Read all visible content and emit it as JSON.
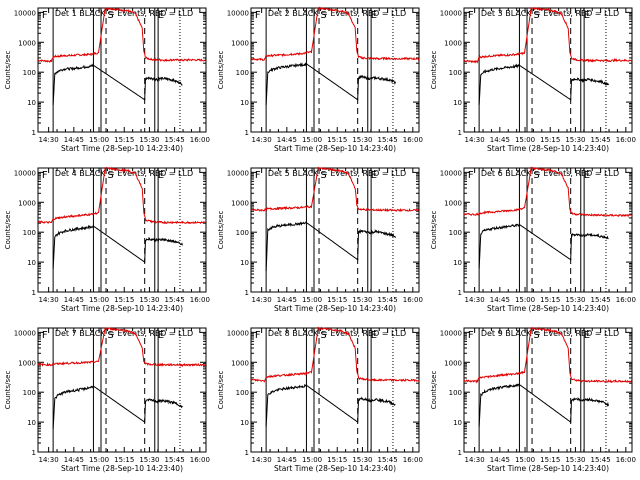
{
  "chart_data": {
    "type": "line",
    "x_unit": "minutes after 14:23:40",
    "y_scale": "log",
    "ylim": [
      1,
      14000
    ],
    "xlim": [
      0,
      100
    ],
    "ylabel": "Counts/sec",
    "xlabel": "Start Time (28-Sep-10 14:23:40)",
    "x_ticks": [
      {
        "label": "14:30",
        "value": 6.33
      },
      {
        "label": "14:45",
        "value": 21.33
      },
      {
        "label": "15:00",
        "value": 36.33
      },
      {
        "label": "15:15",
        "value": 51.33
      },
      {
        "label": "15:30",
        "value": 66.33
      },
      {
        "label": "15:45",
        "value": 81.33
      },
      {
        "label": "16:00",
        "value": 96.33
      }
    ],
    "y_ticks": [
      {
        "label": "1",
        "value": 1
      },
      {
        "label": "10",
        "value": 10
      },
      {
        "label": "100",
        "value": 100
      },
      {
        "label": "1000",
        "value": 1000
      },
      {
        "label": "10000",
        "value": 10000
      }
    ],
    "markers": [
      {
        "label": "F",
        "value": 2.3
      },
      {
        "label": "S",
        "value": 41.3
      },
      {
        "label": "E",
        "value": 71.3
      }
    ],
    "solid_lines": [
      9,
      33,
      37.5,
      69.5,
      71.5
    ],
    "dashed_lines": [
      40.5,
      63.5
    ],
    "dotted_lines": [
      84.5
    ],
    "panels": [
      {
        "title": "Det 1 BLACK = Events, RED = LLD",
        "bg_red": 250,
        "bg_black": 100,
        "red_series": {
          "name": "RED = LLD",
          "x": [
            0,
            8,
            9,
            12,
            16,
            20,
            24,
            28,
            32,
            33,
            36,
            40,
            44,
            50,
            54,
            58,
            62,
            63,
            64,
            67,
            70,
            73,
            76,
            80,
            86,
            90,
            100
          ],
          "y": [
            250,
            230,
            330,
            340,
            360,
            360,
            380,
            380,
            400,
            420,
            440,
            14000,
            13000,
            12000,
            11000,
            9000,
            3000,
            500,
            300,
            270,
            260,
            260,
            250,
            260,
            250,
            260,
            250
          ]
        },
        "black_series": {
          "name": "BLACK = Events",
          "x": [
            9,
            10,
            12,
            16,
            20,
            24,
            28,
            32,
            33,
            63.5,
            64,
            66,
            68,
            70,
            71.5,
            72,
            74,
            76,
            78,
            80,
            82,
            84,
            86
          ],
          "y": [
            8,
            90,
            110,
            130,
            130,
            140,
            150,
            160,
            170,
            12,
            60,
            65,
            60,
            60,
            55,
            60,
            62,
            60,
            58,
            55,
            50,
            45,
            40
          ]
        }
      },
      {
        "title": "Det 2 BLACK = Events, RED = LLD",
        "bg_red": 280,
        "bg_black": 100,
        "red_series": {
          "name": "RED = LLD",
          "x": [
            0,
            8,
            9,
            12,
            16,
            20,
            24,
            28,
            32,
            33,
            36,
            40,
            44,
            50,
            54,
            58,
            62,
            63,
            64,
            67,
            70,
            73,
            76,
            80,
            86,
            90,
            100
          ],
          "y": [
            280,
            260,
            350,
            360,
            370,
            380,
            400,
            410,
            430,
            450,
            470,
            14000,
            13000,
            12000,
            11000,
            9000,
            3000,
            520,
            320,
            300,
            290,
            290,
            280,
            290,
            280,
            285,
            280
          ]
        },
        "black_series": {
          "name": "BLACK = Events",
          "x": [
            9,
            10,
            12,
            16,
            20,
            24,
            28,
            32,
            33,
            63.5,
            64,
            66,
            68,
            70,
            71.5,
            72,
            74,
            76,
            78,
            80,
            82,
            84,
            86
          ],
          "y": [
            8,
            100,
            120,
            140,
            150,
            160,
            170,
            180,
            190,
            12,
            65,
            70,
            65,
            62,
            60,
            62,
            65,
            62,
            60,
            58,
            55,
            50,
            45
          ]
        }
      },
      {
        "title": "Det 3 BLACK = Events, RED = LLD",
        "bg_red": 250,
        "bg_black": 100,
        "red_series": {
          "name": "RED = LLD",
          "x": [
            0,
            8,
            9,
            12,
            16,
            20,
            24,
            28,
            32,
            33,
            36,
            40,
            44,
            50,
            54,
            58,
            62,
            63,
            64,
            67,
            70,
            73,
            76,
            80,
            86,
            90,
            100
          ],
          "y": [
            240,
            220,
            320,
            330,
            350,
            360,
            370,
            380,
            400,
            420,
            430,
            14000,
            13000,
            12000,
            11000,
            9000,
            3000,
            480,
            290,
            260,
            250,
            250,
            245,
            250,
            240,
            250,
            245
          ]
        },
        "black_series": {
          "name": "BLACK = Events",
          "x": [
            9,
            10,
            12,
            16,
            20,
            24,
            28,
            32,
            33,
            63.5,
            64,
            66,
            68,
            70,
            71.5,
            72,
            74,
            76,
            78,
            80,
            82,
            84,
            86
          ],
          "y": [
            8,
            85,
            100,
            120,
            130,
            140,
            150,
            160,
            170,
            12,
            55,
            60,
            58,
            55,
            52,
            55,
            58,
            55,
            52,
            50,
            48,
            42,
            38
          ]
        }
      },
      {
        "title": "Det 4 BLACK = Events, RED = LLD",
        "bg_red": 220,
        "bg_black": 90,
        "red_series": {
          "name": "RED = LLD",
          "x": [
            0,
            8,
            9,
            12,
            16,
            20,
            24,
            28,
            32,
            33,
            36,
            40,
            44,
            50,
            54,
            58,
            62,
            63,
            64,
            67,
            70,
            73,
            76,
            80,
            86,
            90,
            100
          ],
          "y": [
            220,
            210,
            280,
            300,
            320,
            340,
            360,
            380,
            400,
            420,
            440,
            14000,
            13000,
            12000,
            11000,
            9000,
            3000,
            450,
            260,
            230,
            220,
            215,
            210,
            215,
            210,
            212,
            210
          ]
        },
        "black_series": {
          "name": "BLACK = Events",
          "x": [
            9,
            10,
            12,
            16,
            20,
            24,
            28,
            32,
            33,
            63.5,
            64,
            66,
            68,
            70,
            71.5,
            72,
            74,
            76,
            78,
            80,
            82,
            84,
            86
          ],
          "y": [
            6,
            70,
            90,
            110,
            120,
            130,
            140,
            150,
            160,
            10,
            55,
            60,
            58,
            55,
            52,
            55,
            58,
            55,
            52,
            50,
            48,
            42,
            38
          ]
        }
      },
      {
        "title": "Det 5 BLACK = Events, RED = LLD",
        "bg_red": 550,
        "bg_black": 120,
        "red_series": {
          "name": "RED = LLD",
          "x": [
            0,
            8,
            9,
            12,
            16,
            20,
            24,
            28,
            32,
            33,
            36,
            40,
            44,
            50,
            54,
            58,
            62,
            63,
            64,
            67,
            70,
            73,
            76,
            80,
            86,
            90,
            100
          ],
          "y": [
            560,
            540,
            600,
            610,
            620,
            640,
            650,
            660,
            680,
            700,
            720,
            14000,
            13000,
            12000,
            11000,
            9000,
            3000,
            800,
            600,
            570,
            560,
            550,
            550,
            545,
            540,
            545,
            540
          ]
        },
        "black_series": {
          "name": "BLACK = Events",
          "x": [
            9,
            10,
            12,
            16,
            20,
            24,
            28,
            32,
            33,
            63.5,
            64,
            66,
            68,
            70,
            71.5,
            72,
            74,
            76,
            78,
            80,
            82,
            84,
            86
          ],
          "y": [
            5,
            120,
            140,
            160,
            170,
            180,
            190,
            200,
            210,
            12,
            100,
            110,
            105,
            100,
            95,
            100,
            105,
            100,
            95,
            90,
            85,
            80,
            70
          ]
        }
      },
      {
        "title": "Det 6 BLACK = Events, RED = LLD",
        "bg_red": 380,
        "bg_black": 100,
        "red_series": {
          "name": "RED = LLD",
          "x": [
            0,
            8,
            9,
            12,
            16,
            20,
            24,
            28,
            32,
            33,
            36,
            40,
            44,
            50,
            54,
            58,
            62,
            63,
            64,
            67,
            70,
            73,
            76,
            80,
            86,
            90,
            100
          ],
          "y": [
            400,
            390,
            430,
            450,
            470,
            490,
            510,
            540,
            560,
            600,
            640,
            14000,
            13000,
            12000,
            11000,
            9000,
            3000,
            600,
            420,
            400,
            390,
            380,
            375,
            370,
            365,
            365,
            360
          ]
        },
        "black_series": {
          "name": "BLACK = Events",
          "x": [
            9,
            10,
            12,
            16,
            20,
            24,
            28,
            32,
            33,
            63.5,
            64,
            66,
            68,
            70,
            71.5,
            72,
            74,
            76,
            78,
            80,
            82,
            84,
            86
          ],
          "y": [
            6,
            90,
            110,
            130,
            140,
            150,
            160,
            170,
            180,
            12,
            80,
            85,
            82,
            80,
            75,
            80,
            82,
            80,
            78,
            75,
            72,
            68,
            65
          ]
        }
      },
      {
        "title": "Det 7 BLACK = Events, RED = LLD",
        "bg_red": 820,
        "bg_black": 80,
        "red_series": {
          "name": "RED = LLD",
          "x": [
            0,
            8,
            9,
            12,
            16,
            20,
            24,
            28,
            32,
            33,
            36,
            40,
            44,
            50,
            54,
            58,
            62,
            63,
            64,
            67,
            70,
            73,
            76,
            80,
            86,
            90,
            100
          ],
          "y": [
            850,
            820,
            880,
            900,
            920,
            940,
            960,
            980,
            1000,
            1020,
            1050,
            14000,
            13000,
            12000,
            11000,
            9000,
            3000,
            1100,
            880,
            850,
            840,
            830,
            820,
            830,
            820,
            825,
            820
          ]
        },
        "black_series": {
          "name": "BLACK = Events",
          "x": [
            9,
            10,
            12,
            16,
            20,
            24,
            28,
            32,
            33,
            63.5,
            64,
            66,
            68,
            70,
            71.5,
            72,
            74,
            76,
            78,
            80,
            82,
            84,
            86
          ],
          "y": [
            6,
            60,
            80,
            100,
            110,
            120,
            130,
            150,
            160,
            10,
            50,
            55,
            52,
            50,
            48,
            50,
            52,
            50,
            48,
            45,
            42,
            38,
            30
          ]
        }
      },
      {
        "title": "Det 8 BLACK = Events, RED = LLD",
        "bg_red": 250,
        "bg_black": 90,
        "red_series": {
          "name": "RED = LLD",
          "x": [
            0,
            8,
            9,
            12,
            16,
            20,
            24,
            28,
            32,
            33,
            36,
            40,
            44,
            50,
            54,
            58,
            62,
            63,
            64,
            67,
            70,
            73,
            76,
            80,
            86,
            90,
            100
          ],
          "y": [
            260,
            240,
            320,
            340,
            360,
            370,
            390,
            400,
            420,
            440,
            460,
            14000,
            13000,
            12000,
            11000,
            9000,
            3000,
            500,
            300,
            270,
            260,
            255,
            250,
            255,
            250,
            252,
            250
          ]
        },
        "black_series": {
          "name": "BLACK = Events",
          "x": [
            9,
            10,
            12,
            16,
            20,
            24,
            28,
            32,
            33,
            63.5,
            64,
            66,
            68,
            70,
            71.5,
            72,
            74,
            76,
            78,
            80,
            82,
            84,
            86
          ],
          "y": [
            7,
            80,
            100,
            120,
            130,
            140,
            150,
            160,
            170,
            10,
            55,
            60,
            58,
            55,
            52,
            55,
            58,
            55,
            52,
            50,
            48,
            42,
            38
          ]
        }
      },
      {
        "title": "Det 9 BLACK = Events, RED = LLD",
        "bg_red": 230,
        "bg_black": 90,
        "red_series": {
          "name": "RED = LLD",
          "x": [
            0,
            8,
            9,
            12,
            16,
            20,
            24,
            28,
            32,
            33,
            36,
            40,
            44,
            50,
            54,
            58,
            62,
            63,
            64,
            67,
            70,
            73,
            76,
            80,
            86,
            90,
            100
          ],
          "y": [
            240,
            230,
            300,
            320,
            340,
            360,
            380,
            400,
            420,
            440,
            460,
            14000,
            13000,
            12000,
            11000,
            9000,
            3000,
            480,
            280,
            250,
            240,
            235,
            230,
            235,
            230,
            232,
            230
          ]
        },
        "black_series": {
          "name": "BLACK = Events",
          "x": [
            9,
            10,
            12,
            16,
            20,
            24,
            28,
            32,
            33,
            63.5,
            64,
            66,
            68,
            70,
            71.5,
            72,
            74,
            76,
            78,
            80,
            82,
            84,
            86
          ],
          "y": [
            7,
            80,
            100,
            130,
            140,
            150,
            160,
            170,
            180,
            10,
            55,
            60,
            58,
            55,
            52,
            55,
            58,
            55,
            52,
            50,
            48,
            42,
            38
          ]
        }
      }
    ]
  }
}
